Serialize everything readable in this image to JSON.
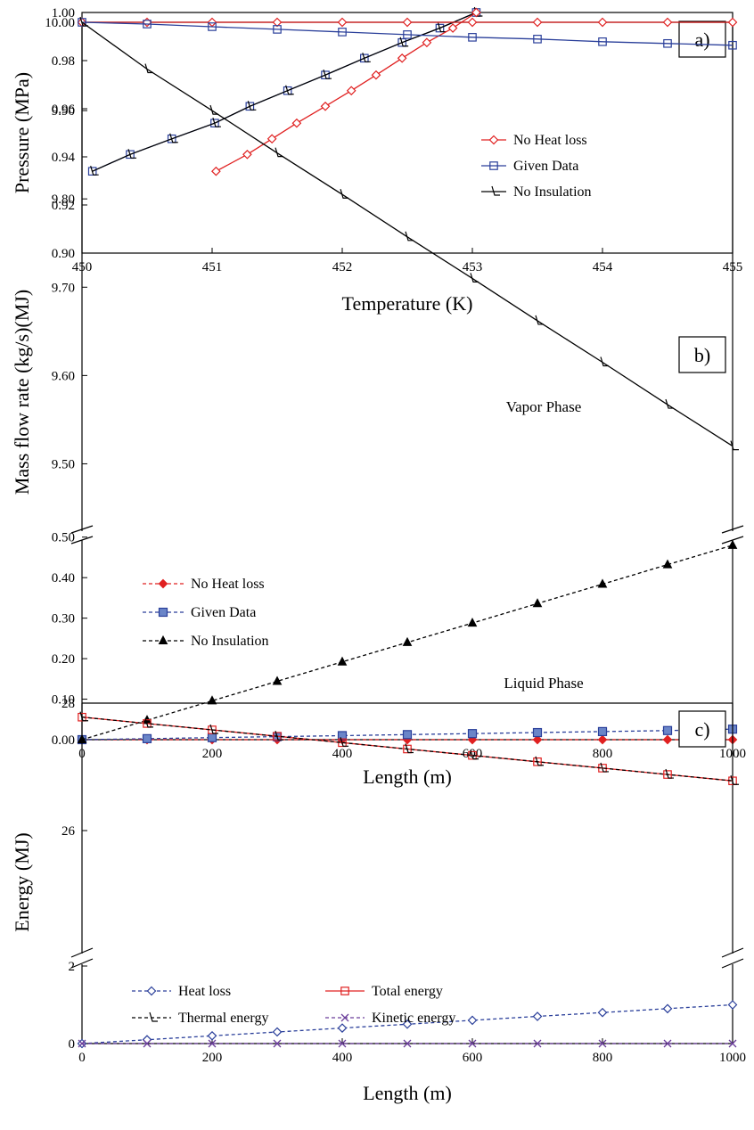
{
  "chart_data": [
    {
      "id": "a",
      "type": "line",
      "panel_label": "a)",
      "xlabel": "Temperature (K)",
      "ylabel": "Pressure (MPa)",
      "xlim": [
        450,
        455
      ],
      "ylim": [
        0.9,
        1.0
      ],
      "x_ticks": [
        "450",
        "451",
        "452",
        "453",
        "454",
        "455"
      ],
      "y_ticks": [
        "0.90",
        "0.92",
        "0.94",
        "0.96",
        "0.98",
        "1.00"
      ],
      "legend_position": "middle-right",
      "series": [
        {
          "name": "No Heat loss",
          "color": "#e02020",
          "marker": "diamond",
          "dash": "solid",
          "points": [
            [
              451.03,
              0.934
            ],
            [
              451.27,
              0.941
            ],
            [
              451.46,
              0.9475
            ],
            [
              451.65,
              0.954
            ],
            [
              451.87,
              0.961
            ],
            [
              452.07,
              0.9675
            ],
            [
              452.26,
              0.974
            ],
            [
              452.46,
              0.981
            ],
            [
              452.65,
              0.9875
            ],
            [
              452.85,
              0.9935
            ],
            [
              453.03,
              1.0
            ]
          ]
        },
        {
          "name": "Given Data",
          "color": "#2a3f9a",
          "marker": "square",
          "dash": "solid",
          "points": [
            [
              450.08,
              0.934
            ],
            [
              450.37,
              0.941
            ],
            [
              450.69,
              0.9475
            ],
            [
              451.02,
              0.954
            ],
            [
              451.29,
              0.961
            ],
            [
              451.58,
              0.9675
            ],
            [
              451.87,
              0.974
            ],
            [
              452.17,
              0.981
            ],
            [
              452.46,
              0.9875
            ],
            [
              452.75,
              0.9935
            ],
            [
              453.03,
              1.0
            ]
          ]
        },
        {
          "name": "No Insulation",
          "color": "#000000",
          "marker": "tri",
          "dash": "solid",
          "points": [
            [
              450.08,
              0.934
            ],
            [
              450.37,
              0.941
            ],
            [
              450.69,
              0.9475
            ],
            [
              451.02,
              0.954
            ],
            [
              451.29,
              0.961
            ],
            [
              451.58,
              0.9675
            ],
            [
              451.87,
              0.974
            ],
            [
              452.17,
              0.981
            ],
            [
              452.46,
              0.9875
            ],
            [
              452.75,
              0.9935
            ],
            [
              453.03,
              1.0
            ]
          ]
        }
      ]
    },
    {
      "id": "b",
      "type": "line",
      "panel_label": "b)",
      "xlabel": "Length  (m)",
      "ylabel": "Mass flow rate (kg/s)(MJ)",
      "xlim": [
        0,
        1000
      ],
      "x_ticks": [
        "0",
        "200",
        "400",
        "600",
        "800",
        "1000"
      ],
      "y_upper_lim": [
        9.45,
        10.0
      ],
      "y_upper_ticks": [
        "9.50",
        "9.60",
        "9.70",
        "9.80",
        "9.90",
        "10.00"
      ],
      "y_lower_lim": [
        0.0,
        0.55
      ],
      "y_lower_ticks": [
        "0.00",
        "0.10",
        "0.20",
        "0.30",
        "0.40",
        "0.50"
      ],
      "annotations": [
        "Vapor Phase",
        "Liquid Phase"
      ],
      "legend_position": "middle-left",
      "series": [
        {
          "name": "",
          "segment": "upper",
          "color": "#e02020",
          "marker": "diamond-open",
          "dash": "solid",
          "x": [
            0,
            100,
            200,
            300,
            400,
            500,
            600,
            700,
            800,
            900,
            1000
          ],
          "y": [
            10.0,
            10.0,
            10.0,
            10.0,
            10.0,
            10.0,
            10.0,
            10.0,
            10.0,
            10.0,
            10.0
          ]
        },
        {
          "name": "",
          "segment": "upper",
          "color": "#2a3f9a",
          "marker": "square-open",
          "dash": "solid",
          "x": [
            0,
            100,
            200,
            300,
            400,
            500,
            600,
            700,
            800,
            900,
            1000
          ],
          "y": [
            10.0,
            9.998,
            9.995,
            9.992,
            9.989,
            9.986,
            9.983,
            9.981,
            9.978,
            9.976,
            9.974
          ]
        },
        {
          "name": "",
          "segment": "upper",
          "color": "#000000",
          "marker": "tri-open",
          "dash": "solid",
          "x": [
            0,
            100,
            200,
            300,
            400,
            500,
            600,
            700,
            800,
            900,
            1000
          ],
          "y": [
            10.0,
            9.947,
            9.9,
            9.852,
            9.805,
            9.757,
            9.71,
            9.662,
            9.615,
            9.567,
            9.52
          ]
        },
        {
          "name": "No Heat loss",
          "segment": "lower",
          "color": "#e02020",
          "marker": "diamond-filled",
          "dash": "dashed",
          "x": [
            0,
            100,
            200,
            300,
            400,
            500,
            600,
            700,
            800,
            900,
            1000
          ],
          "y": [
            0,
            0,
            0,
            0,
            0,
            0,
            0,
            0,
            0,
            0,
            0
          ]
        },
        {
          "name": "Given Data",
          "segment": "lower",
          "color": "#2a3f9a",
          "marker": "square-filled",
          "dash": "dashed",
          "x": [
            0,
            100,
            200,
            300,
            400,
            500,
            600,
            700,
            800,
            900,
            1000
          ],
          "y": [
            0,
            0.0025,
            0.005,
            0.0075,
            0.01,
            0.0125,
            0.015,
            0.0175,
            0.02,
            0.0225,
            0.026
          ]
        },
        {
          "name": "No Insulation",
          "segment": "lower",
          "color": "#000000",
          "marker": "tri-filled",
          "dash": "dashed",
          "x": [
            0,
            100,
            200,
            300,
            400,
            500,
            600,
            700,
            800,
            900,
            1000
          ],
          "y": [
            0,
            0.048,
            0.096,
            0.144,
            0.192,
            0.24,
            0.288,
            0.336,
            0.384,
            0.432,
            0.48
          ]
        }
      ]
    },
    {
      "id": "c",
      "type": "line",
      "panel_label": "c)",
      "xlabel": "Length (m)",
      "ylabel": "Energy (MJ)",
      "xlim": [
        0,
        1000
      ],
      "x_ticks": [
        "0",
        "200",
        "400",
        "600",
        "800",
        "1000"
      ],
      "y_upper_lim": [
        25.4,
        28.0
      ],
      "y_upper_ticks": [
        "26",
        "28"
      ],
      "y_lower_lim": [
        0,
        2.2
      ],
      "y_lower_ticks": [
        "0",
        "2"
      ],
      "legend_position": "bottom-center",
      "series": [
        {
          "name": "Heat loss",
          "segment": "lower",
          "color": "#2a3f9a",
          "marker": "diamond-open",
          "dash": "dashed",
          "x": [
            0,
            100,
            200,
            300,
            400,
            500,
            600,
            700,
            800,
            900,
            1000
          ],
          "y": [
            0,
            0.1,
            0.2,
            0.3,
            0.4,
            0.5,
            0.6,
            0.7,
            0.8,
            0.9,
            1.0
          ]
        },
        {
          "name": "Total energy",
          "segment": "upper",
          "color": "#e02020",
          "marker": "square-open",
          "dash": "solid",
          "x": [
            0,
            100,
            200,
            300,
            400,
            500,
            600,
            700,
            800,
            900,
            1000
          ],
          "y": [
            27.78,
            27.68,
            27.58,
            27.48,
            27.38,
            27.28,
            27.18,
            27.08,
            26.98,
            26.88,
            26.78
          ]
        },
        {
          "name": "Thermal energy",
          "segment": "upper",
          "color": "#000000",
          "marker": "tri-open",
          "dash": "dashed",
          "x": [
            0,
            100,
            200,
            300,
            400,
            500,
            600,
            700,
            800,
            900,
            1000
          ],
          "y": [
            27.78,
            27.68,
            27.58,
            27.48,
            27.38,
            27.28,
            27.18,
            27.08,
            26.98,
            26.88,
            26.78
          ]
        },
        {
          "name": "Kinetic energy",
          "segment": "lower",
          "color": "#6a3d9a",
          "marker": "x",
          "dash": "dashed",
          "x": [
            0,
            100,
            200,
            300,
            400,
            500,
            600,
            700,
            800,
            900,
            1000
          ],
          "y": [
            0,
            0,
            0,
            0,
            0,
            0,
            0,
            0,
            0,
            0,
            0
          ]
        }
      ]
    }
  ]
}
